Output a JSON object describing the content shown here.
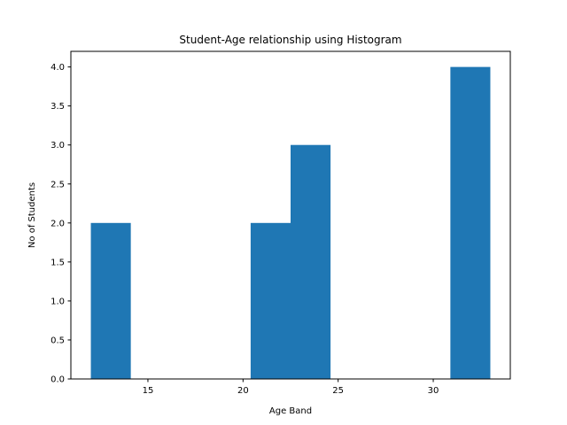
{
  "chart_data": {
    "type": "bar",
    "title": "Student-Age relationship using Histogram",
    "xlabel": "Age Band",
    "ylabel": "No of Students",
    "xlim": [
      10.95,
      34.05
    ],
    "ylim": [
      0,
      4.2
    ],
    "xticks": [
      15,
      20,
      25,
      30
    ],
    "yticks": [
      0.0,
      0.5,
      1.0,
      1.5,
      2.0,
      2.5,
      3.0,
      3.5,
      4.0
    ],
    "bins": [
      {
        "x0": 12,
        "x1": 14.1,
        "count": 2
      },
      {
        "x0": 14.1,
        "x1": 16.2,
        "count": 0
      },
      {
        "x0": 16.2,
        "x1": 18.3,
        "count": 0
      },
      {
        "x0": 18.3,
        "x1": 20.4,
        "count": 0
      },
      {
        "x0": 20.4,
        "x1": 22.5,
        "count": 2
      },
      {
        "x0": 22.5,
        "x1": 24.6,
        "count": 3
      },
      {
        "x0": 24.6,
        "x1": 26.7,
        "count": 0
      },
      {
        "x0": 26.7,
        "x1": 28.8,
        "count": 0
      },
      {
        "x0": 28.8,
        "x1": 30.9,
        "count": 0
      },
      {
        "x0": 30.9,
        "x1": 33.0,
        "count": 4
      }
    ],
    "bar_color": "#1f77b4",
    "grid": false,
    "legend": "none"
  }
}
